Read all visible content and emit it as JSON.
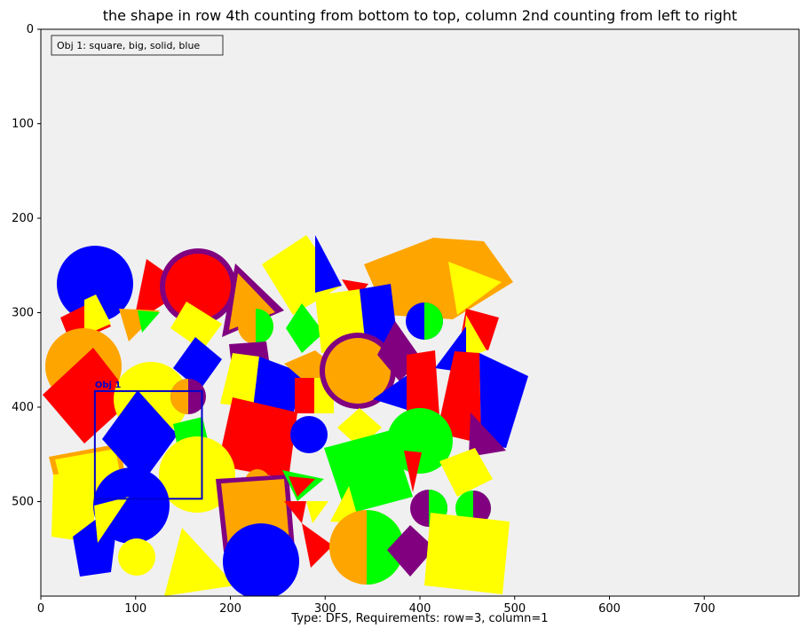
{
  "title": "the shape in row 4th counting from bottom to top, column 2nd counting from left to right",
  "footer": "Type: DFS, Requirements: row=3, column=1",
  "legend": "Obj 1: square, big, solid, blue",
  "box_label": "Obj 1",
  "colors": {
    "background": "#f0f0f0",
    "red": "#ff0000",
    "blue": "#0000ff",
    "yellow": "#ffff00",
    "orange": "#ffa500",
    "green": "#00ff00",
    "purple": "#800080",
    "box": "#0000cc"
  },
  "chart_data": {
    "type": "scatter",
    "xlim": [
      0,
      800
    ],
    "ylim": [
      600,
      0
    ],
    "x_ticks": [
      0,
      100,
      200,
      300,
      400,
      500,
      600,
      700
    ],
    "y_ticks": [
      0,
      100,
      200,
      300,
      400,
      500
    ],
    "box": {
      "x": 57,
      "y": 383,
      "w": 113,
      "h": 114
    }
  }
}
